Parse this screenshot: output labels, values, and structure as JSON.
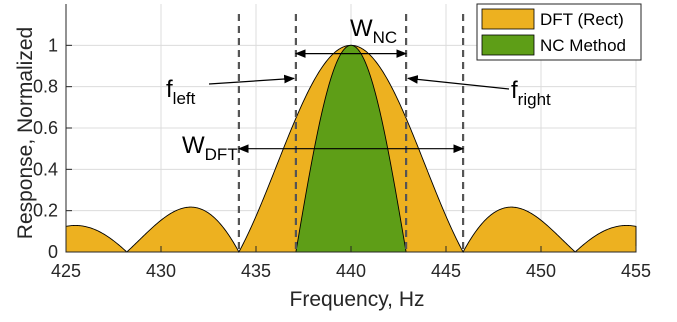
{
  "chart_data": {
    "type": "area",
    "title": "",
    "xlabel": "Frequency, Hz",
    "ylabel": "Response, Normalized",
    "xlim": [
      425,
      455
    ],
    "ylim": [
      0,
      1.2
    ],
    "xticks": [
      425,
      430,
      435,
      440,
      445,
      450,
      455
    ],
    "yticks": [
      0,
      0.2,
      0.4,
      0.6,
      0.8,
      1
    ],
    "grid": true,
    "legend_position": "top-right",
    "series": [
      {
        "name": "DFT (Rect)",
        "shape": "abs-sinc",
        "center": 440,
        "null_spacing": 5.9,
        "x": [
          425,
          428.2,
          431.5,
          434.1,
          437.1,
          440,
          442.9,
          445.9,
          448.5,
          451.8,
          455
        ],
        "y": [
          0.13,
          0,
          0.22,
          0,
          0.78,
          1,
          0.78,
          0,
          0.22,
          0,
          0.13
        ],
        "color": "#EDB120"
      },
      {
        "name": "NC Method",
        "shape": "main-lobe",
        "center": 440,
        "x": [
          437.1,
          440,
          442.9
        ],
        "y": [
          0,
          1,
          0
        ],
        "color": "#5E9E17"
      }
    ],
    "markers": {
      "f_left": 437.1,
      "f_right": 442.9,
      "dft_left": 434.1,
      "dft_right": 445.9
    },
    "annotations": {
      "w_nc": {
        "main": "W",
        "sub": "NC"
      },
      "w_dft": {
        "main": "W",
        "sub": "DFT"
      },
      "f_left": {
        "main": "f",
        "sub": "left"
      },
      "f_right": {
        "main": "f",
        "sub": "right"
      }
    },
    "colors": {
      "dft_fill": "#EDB120",
      "nc_fill": "#5E9E17",
      "marker_line": "#555555"
    }
  }
}
